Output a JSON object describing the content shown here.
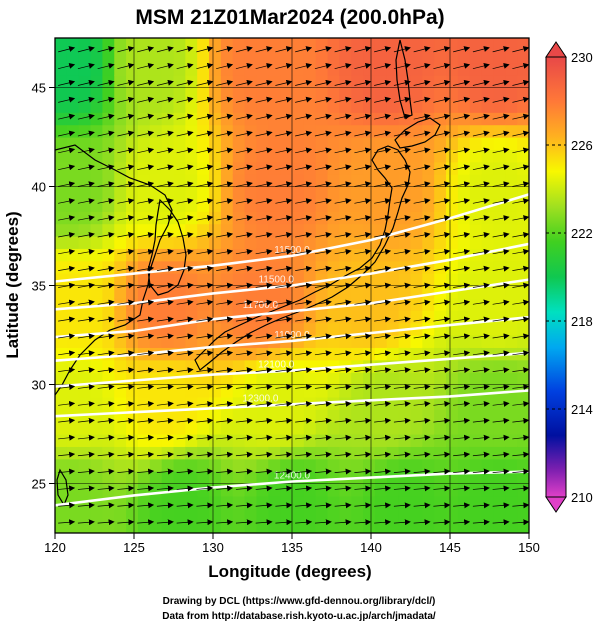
{
  "title": "MSM 21Z01Mar2024 (200.0hPa)",
  "xlabel": "Longitude (degrees)",
  "ylabel": "Latitude  (degrees)",
  "x_ticks": [
    "120",
    "125",
    "130",
    "135",
    "140",
    "145",
    "150"
  ],
  "y_ticks": [
    "25",
    "30",
    "35",
    "40",
    "45"
  ],
  "colorbar_ticks": [
    "230",
    "226",
    "222",
    "218",
    "214",
    "210"
  ],
  "credit_line1": "Drawing by DCL (https://www.gfd-dennou.org/library/dcl/)",
  "credit_line2": "Data from http://database.rish.kyoto-u.ac.jp/arch/jmadata/",
  "contour_labels": [
    "11500.0",
    "11500.0",
    "11700.0",
    "11900.0",
    "12100.0",
    "12300.0",
    "12400.0"
  ],
  "chart_data": {
    "type": "heatmap",
    "title": "MSM 21Z01Mar2024 (200.0hPa)",
    "xlabel": "Longitude (degrees)",
    "ylabel": "Latitude  (degrees)",
    "xlim": [
      120,
      150
    ],
    "ylim": [
      22.5,
      47.5
    ],
    "x_ticks": [
      120,
      125,
      130,
      135,
      140,
      145,
      150
    ],
    "y_ticks": [
      25,
      30,
      35,
      40,
      45
    ],
    "colorbar": {
      "min": 210,
      "max": 230,
      "ticks": [
        230,
        226,
        222,
        218,
        214,
        210
      ]
    },
    "colormap": [
      "#e040c8",
      "#0010a0",
      "#0040e0",
      "#00a8f0",
      "#00e0c0",
      "#10c850",
      "#40d020",
      "#a0e020",
      "#f8f800",
      "#ffb020",
      "#ff7838",
      "#e84848"
    ],
    "temperature_field_samples": [
      {
        "lon": 121,
        "lat": 46,
        "value": 219
      },
      {
        "lon": 126,
        "lat": 46,
        "value": 223
      },
      {
        "lon": 133,
        "lat": 46,
        "value": 228
      },
      {
        "lon": 141,
        "lat": 46,
        "value": 229
      },
      {
        "lon": 148,
        "lat": 46,
        "value": 229
      },
      {
        "lon": 121,
        "lat": 40,
        "value": 222
      },
      {
        "lon": 127,
        "lat": 40,
        "value": 224
      },
      {
        "lon": 134,
        "lat": 40,
        "value": 228
      },
      {
        "lon": 141,
        "lat": 40,
        "value": 227
      },
      {
        "lon": 148,
        "lat": 40,
        "value": 224
      },
      {
        "lon": 121,
        "lat": 34,
        "value": 225
      },
      {
        "lon": 127,
        "lat": 34,
        "value": 228
      },
      {
        "lon": 133,
        "lat": 34,
        "value": 228
      },
      {
        "lon": 140,
        "lat": 34,
        "value": 226
      },
      {
        "lon": 148,
        "lat": 34,
        "value": 224
      },
      {
        "lon": 121,
        "lat": 29,
        "value": 224
      },
      {
        "lon": 127,
        "lat": 29,
        "value": 225
      },
      {
        "lon": 134,
        "lat": 29,
        "value": 224
      },
      {
        "lon": 141,
        "lat": 29,
        "value": 223
      },
      {
        "lon": 148,
        "lat": 29,
        "value": 222
      },
      {
        "lon": 121,
        "lat": 24,
        "value": 222
      },
      {
        "lon": 128,
        "lat": 24,
        "value": 221
      },
      {
        "lon": 135,
        "lat": 24,
        "value": 221
      },
      {
        "lon": 142,
        "lat": 24,
        "value": 221
      },
      {
        "lon": 148,
        "lat": 24,
        "value": 221
      }
    ],
    "geopotential_contours": [
      {
        "label": "11500.0",
        "points": [
          [
            120,
            35.2
          ],
          [
            125,
            35.6
          ],
          [
            130,
            36.0
          ],
          [
            135,
            36.5
          ],
          [
            140,
            37.3
          ],
          [
            145,
            38.4
          ],
          [
            150,
            39.6
          ]
        ]
      },
      {
        "label": "11500.0",
        "points": [
          [
            120,
            33.8
          ],
          [
            125,
            34.1
          ],
          [
            130,
            34.6
          ],
          [
            135,
            35.0
          ],
          [
            140,
            35.6
          ],
          [
            145,
            36.3
          ],
          [
            150,
            37.1
          ]
        ]
      },
      {
        "label": "11700.0",
        "points": [
          [
            120,
            32.4
          ],
          [
            125,
            32.7
          ],
          [
            130,
            33.3
          ],
          [
            135,
            33.7
          ],
          [
            140,
            34.1
          ],
          [
            145,
            34.7
          ],
          [
            150,
            35.3
          ]
        ]
      },
      {
        "label": "11900.0",
        "points": [
          [
            120,
            31.2
          ],
          [
            125,
            31.5
          ],
          [
            130,
            31.9
          ],
          [
            135,
            32.2
          ],
          [
            140,
            32.6
          ],
          [
            145,
            33.0
          ],
          [
            150,
            33.4
          ]
        ]
      },
      {
        "label": "12100.0",
        "points": [
          [
            120,
            29.9
          ],
          [
            125,
            30.2
          ],
          [
            130,
            30.5
          ],
          [
            135,
            30.7
          ],
          [
            140,
            31.0
          ],
          [
            145,
            31.3
          ],
          [
            150,
            31.6
          ]
        ]
      },
      {
        "label": "12300.0",
        "points": [
          [
            120,
            28.4
          ],
          [
            125,
            28.6
          ],
          [
            130,
            28.8
          ],
          [
            135,
            29.0
          ],
          [
            140,
            29.2
          ],
          [
            145,
            29.4
          ],
          [
            150,
            29.7
          ]
        ]
      },
      {
        "label": "12400.0",
        "points": [
          [
            120,
            23.9
          ],
          [
            125,
            24.4
          ],
          [
            130,
            24.8
          ],
          [
            135,
            25.1
          ],
          [
            140,
            25.3
          ],
          [
            145,
            25.5
          ],
          [
            150,
            25.6
          ]
        ]
      }
    ],
    "wind_vectors": "westerly"
  }
}
